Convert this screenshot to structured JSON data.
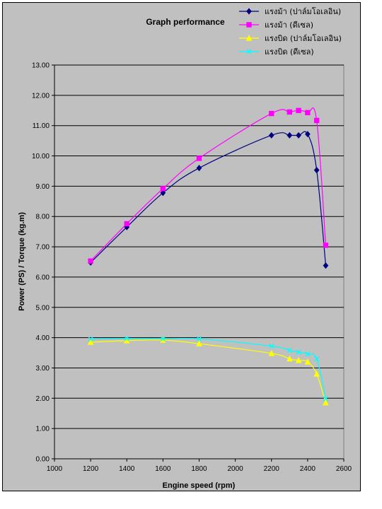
{
  "chart_data": {
    "type": "line",
    "title": "Graph performance",
    "xlabel": "Engine speed (rpm)",
    "ylabel": "Power (PS) / Torque (kg.m)",
    "xlim": [
      1000,
      2600
    ],
    "ylim": [
      0,
      13
    ],
    "x_ticks": [
      "1000",
      "1200",
      "1400",
      "1600",
      "1800",
      "2000",
      "2200",
      "2400",
      "2600"
    ],
    "y_ticks": [
      "0.00",
      "1.00",
      "2.00",
      "3.00",
      "4.00",
      "5.00",
      "6.00",
      "7.00",
      "8.00",
      "9.00",
      "10.00",
      "11.00",
      "12.00",
      "13.00"
    ],
    "grid": "horizontal",
    "legend_position": "top-right",
    "series": [
      {
        "name": "แรงม้า (ปาล์มโอเลอิน)",
        "color": "#000080",
        "marker": "diamond",
        "points": [
          [
            1200,
            6.48
          ],
          [
            1400,
            7.65
          ],
          [
            1600,
            8.78
          ],
          [
            1800,
            9.6
          ],
          [
            2200,
            10.68
          ],
          [
            2300,
            10.68
          ],
          [
            2350,
            10.68
          ],
          [
            2400,
            10.72
          ],
          [
            2450,
            9.53
          ],
          [
            2500,
            6.38
          ]
        ]
      },
      {
        "name": "แรงม้า (ดีเซล)",
        "color": "#ff00ff",
        "marker": "square",
        "points": [
          [
            1200,
            6.53
          ],
          [
            1400,
            7.76
          ],
          [
            1600,
            8.92
          ],
          [
            1800,
            9.92
          ],
          [
            2200,
            11.4
          ],
          [
            2300,
            11.45
          ],
          [
            2350,
            11.5
          ],
          [
            2400,
            11.43
          ],
          [
            2450,
            11.17
          ],
          [
            2500,
            7.05
          ]
        ]
      },
      {
        "name": "แรงบิด (ปาล์มโอเลอิน)",
        "color": "#ffff00",
        "marker": "triangle",
        "points": [
          [
            1200,
            3.85
          ],
          [
            1400,
            3.9
          ],
          [
            1600,
            3.92
          ],
          [
            1800,
            3.8
          ],
          [
            2200,
            3.48
          ],
          [
            2300,
            3.3
          ],
          [
            2350,
            3.25
          ],
          [
            2400,
            3.2
          ],
          [
            2450,
            2.8
          ],
          [
            2500,
            1.85
          ]
        ]
      },
      {
        "name": "แรงบิด (ดีเซล)",
        "color": "#00ffff",
        "marker": "x",
        "points": [
          [
            1200,
            3.95
          ],
          [
            1400,
            3.97
          ],
          [
            1600,
            3.96
          ],
          [
            1800,
            3.96
          ],
          [
            2200,
            3.72
          ],
          [
            2300,
            3.58
          ],
          [
            2350,
            3.52
          ],
          [
            2400,
            3.46
          ],
          [
            2450,
            3.3
          ],
          [
            2500,
            1.98
          ]
        ]
      }
    ]
  }
}
